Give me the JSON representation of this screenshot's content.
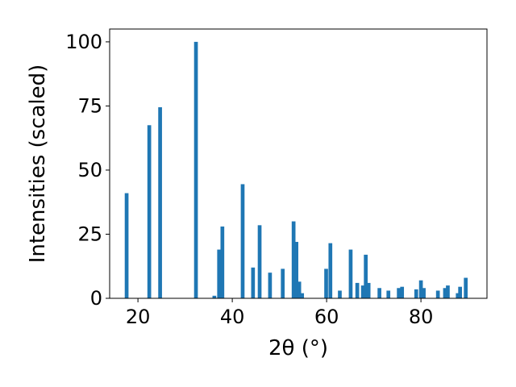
{
  "chart_data": {
    "type": "bar",
    "xlabel": "2θ (°)",
    "ylabel": "Intensities (scaled)",
    "xlim": [
      14,
      94
    ],
    "ylim": [
      0,
      105
    ],
    "xticks": [
      20,
      40,
      60,
      80
    ],
    "yticks": [
      0,
      25,
      50,
      75,
      100
    ],
    "bar_width": 0.8,
    "color": "#1f77b4",
    "grid": false,
    "points": [
      {
        "x": 17.6,
        "y": 41
      },
      {
        "x": 22.4,
        "y": 67.5
      },
      {
        "x": 24.7,
        "y": 74.5
      },
      {
        "x": 32.3,
        "y": 100
      },
      {
        "x": 36.2,
        "y": 1
      },
      {
        "x": 37.2,
        "y": 19
      },
      {
        "x": 37.9,
        "y": 28
      },
      {
        "x": 42.2,
        "y": 44.5
      },
      {
        "x": 44.4,
        "y": 12
      },
      {
        "x": 45.8,
        "y": 28.5
      },
      {
        "x": 48.0,
        "y": 10
      },
      {
        "x": 50.7,
        "y": 11.5
      },
      {
        "x": 53.0,
        "y": 30
      },
      {
        "x": 53.6,
        "y": 22
      },
      {
        "x": 54.2,
        "y": 6.5
      },
      {
        "x": 54.8,
        "y": 2
      },
      {
        "x": 59.9,
        "y": 11.5
      },
      {
        "x": 60.8,
        "y": 21.5
      },
      {
        "x": 62.8,
        "y": 3
      },
      {
        "x": 65.1,
        "y": 19
      },
      {
        "x": 66.5,
        "y": 6
      },
      {
        "x": 67.7,
        "y": 5
      },
      {
        "x": 68.3,
        "y": 17
      },
      {
        "x": 68.9,
        "y": 6
      },
      {
        "x": 71.2,
        "y": 4
      },
      {
        "x": 73.1,
        "y": 3
      },
      {
        "x": 75.3,
        "y": 4
      },
      {
        "x": 76.0,
        "y": 4.5
      },
      {
        "x": 79.0,
        "y": 3.5
      },
      {
        "x": 80.0,
        "y": 7
      },
      {
        "x": 80.6,
        "y": 4
      },
      {
        "x": 83.6,
        "y": 3
      },
      {
        "x": 85.1,
        "y": 4
      },
      {
        "x": 85.7,
        "y": 5
      },
      {
        "x": 87.8,
        "y": 2
      },
      {
        "x": 88.3,
        "y": 4.5
      },
      {
        "x": 89.5,
        "y": 8
      }
    ]
  }
}
